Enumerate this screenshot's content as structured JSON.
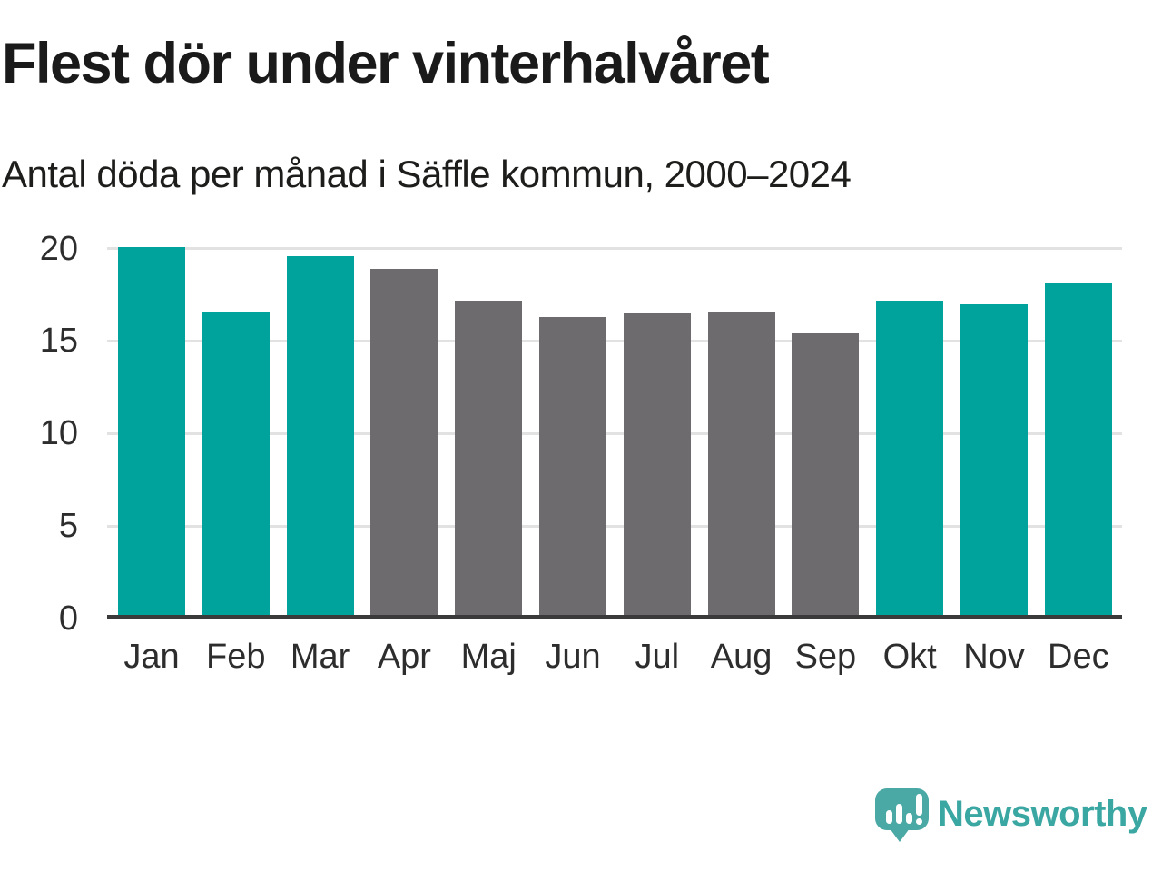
{
  "header": {
    "title": "Flest dör under vinterhalvåret",
    "subtitle": "Antal döda per månad i Säffle kommun, 2000–2024"
  },
  "chart_data": {
    "type": "bar",
    "title": "Flest dör under vinterhalvåret",
    "subtitle": "Antal döda per månad i Säffle kommun, 2000–2024",
    "categories": [
      "Jan",
      "Feb",
      "Mar",
      "Apr",
      "Maj",
      "Jun",
      "Jul",
      "Aug",
      "Sep",
      "Okt",
      "Nov",
      "Dec"
    ],
    "values": [
      20.1,
      16.6,
      19.6,
      18.9,
      17.2,
      16.3,
      16.5,
      16.6,
      15.4,
      17.2,
      17.0,
      18.1
    ],
    "bar_seasons": [
      "winter",
      "winter",
      "winter",
      "summer",
      "summer",
      "summer",
      "summer",
      "summer",
      "summer",
      "winter",
      "winter",
      "winter"
    ],
    "season_colors": {
      "winter": "#00a39b",
      "summer": "#6e6b6f"
    },
    "xlabel": "",
    "ylabel": "",
    "ylim": [
      0,
      20
    ],
    "yticks": [
      0,
      5,
      10,
      15,
      20
    ],
    "grid": "horizontal-gridlines-on",
    "legend": "none"
  },
  "branding": {
    "logo_text": "Newsworthy",
    "logo_icon": "newsworthy-speech-bubble-chart-icon",
    "logo_icon_color": "#4aa8a5",
    "logo_text_color": "#3aa7a2"
  },
  "colors": {
    "background": "#ffffff",
    "title_text": "#1a1a1a",
    "subtitle_text": "#1d1d1b",
    "axis_text": "#2d2d2d",
    "gridline": "#e2e2e2",
    "axis_line": "#3a3a3a",
    "bar_winter": "#00a39b",
    "bar_summer": "#6e6b6f"
  }
}
